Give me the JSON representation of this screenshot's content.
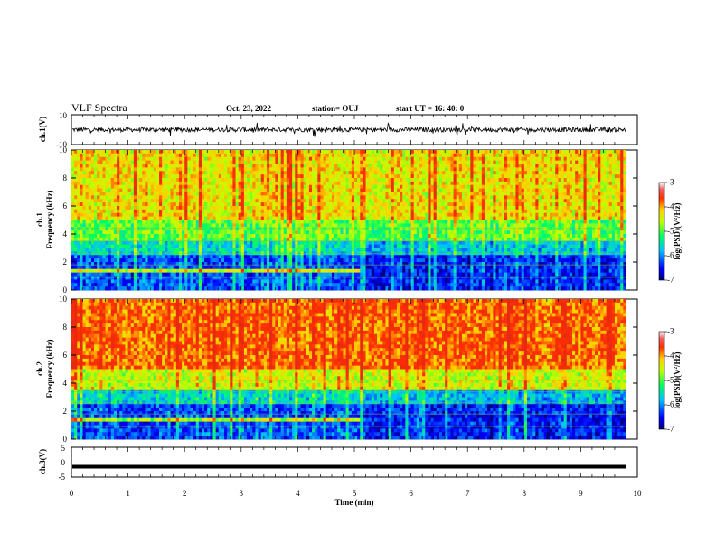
{
  "header": {
    "title": "VLF Spectra",
    "date": "Oct. 23, 2022",
    "station": "station= OUJ",
    "start_ut": "start  UT =   16: 40: 0"
  },
  "chart_data": [
    {
      "type": "line",
      "panel": "ch1-waveform",
      "ylabel": "ch.1(V)",
      "ylim": [
        -10,
        10
      ],
      "yticks": [
        "10",
        "-10"
      ],
      "xlim": [
        0,
        10
      ],
      "color": "#000000"
    },
    {
      "type": "heatmap",
      "panel": "ch1-spectrogram",
      "ylabel": "ch.1\nFrequency (kHz)",
      "ylabel_line1": "ch.1",
      "ylabel_line2": "Frequency (kHz)",
      "ylim": [
        0,
        10
      ],
      "yticks": [
        "0",
        "2",
        "4",
        "6",
        "8",
        "10"
      ],
      "xlim": [
        0,
        9.8
      ],
      "colorbar": {
        "min": -7,
        "max": -3,
        "ticks": [
          "-3",
          "-4",
          "-5",
          "-6",
          "-7"
        ],
        "label": "log(PSD)(V²/Hz)"
      }
    },
    {
      "type": "heatmap",
      "panel": "ch2-spectrogram",
      "ylabel_line1": "ch.2",
      "ylabel_line2": "Frequency (kHz)",
      "ylim": [
        0,
        10
      ],
      "yticks": [
        "0",
        "2",
        "4",
        "6",
        "8",
        "10"
      ],
      "xlim": [
        0,
        9.8
      ],
      "colorbar": {
        "min": -7,
        "max": -3,
        "ticks": [
          "-3",
          "-4",
          "-5",
          "-6",
          "-7"
        ],
        "label": "log(PSD)(V²/Hz)"
      }
    },
    {
      "type": "line",
      "panel": "ch3-waveform",
      "ylabel": "ch.3(V)",
      "ylim": [
        -5,
        5
      ],
      "yticks": [
        "5",
        "0",
        "-5"
      ],
      "values_constant": -1.5,
      "xlim": [
        0,
        9.8
      ],
      "color": "#000000"
    }
  ],
  "xaxis": {
    "label": "Time (min)",
    "ticks": [
      "0",
      "1",
      "2",
      "3",
      "4",
      "5",
      "6",
      "7",
      "8",
      "9",
      "10"
    ],
    "range": [
      0,
      10
    ]
  },
  "colorbar_label_text": "log(PSD)(V",
  "colorbar_label_sup": "2",
  "colorbar_label_end": "/Hz)"
}
